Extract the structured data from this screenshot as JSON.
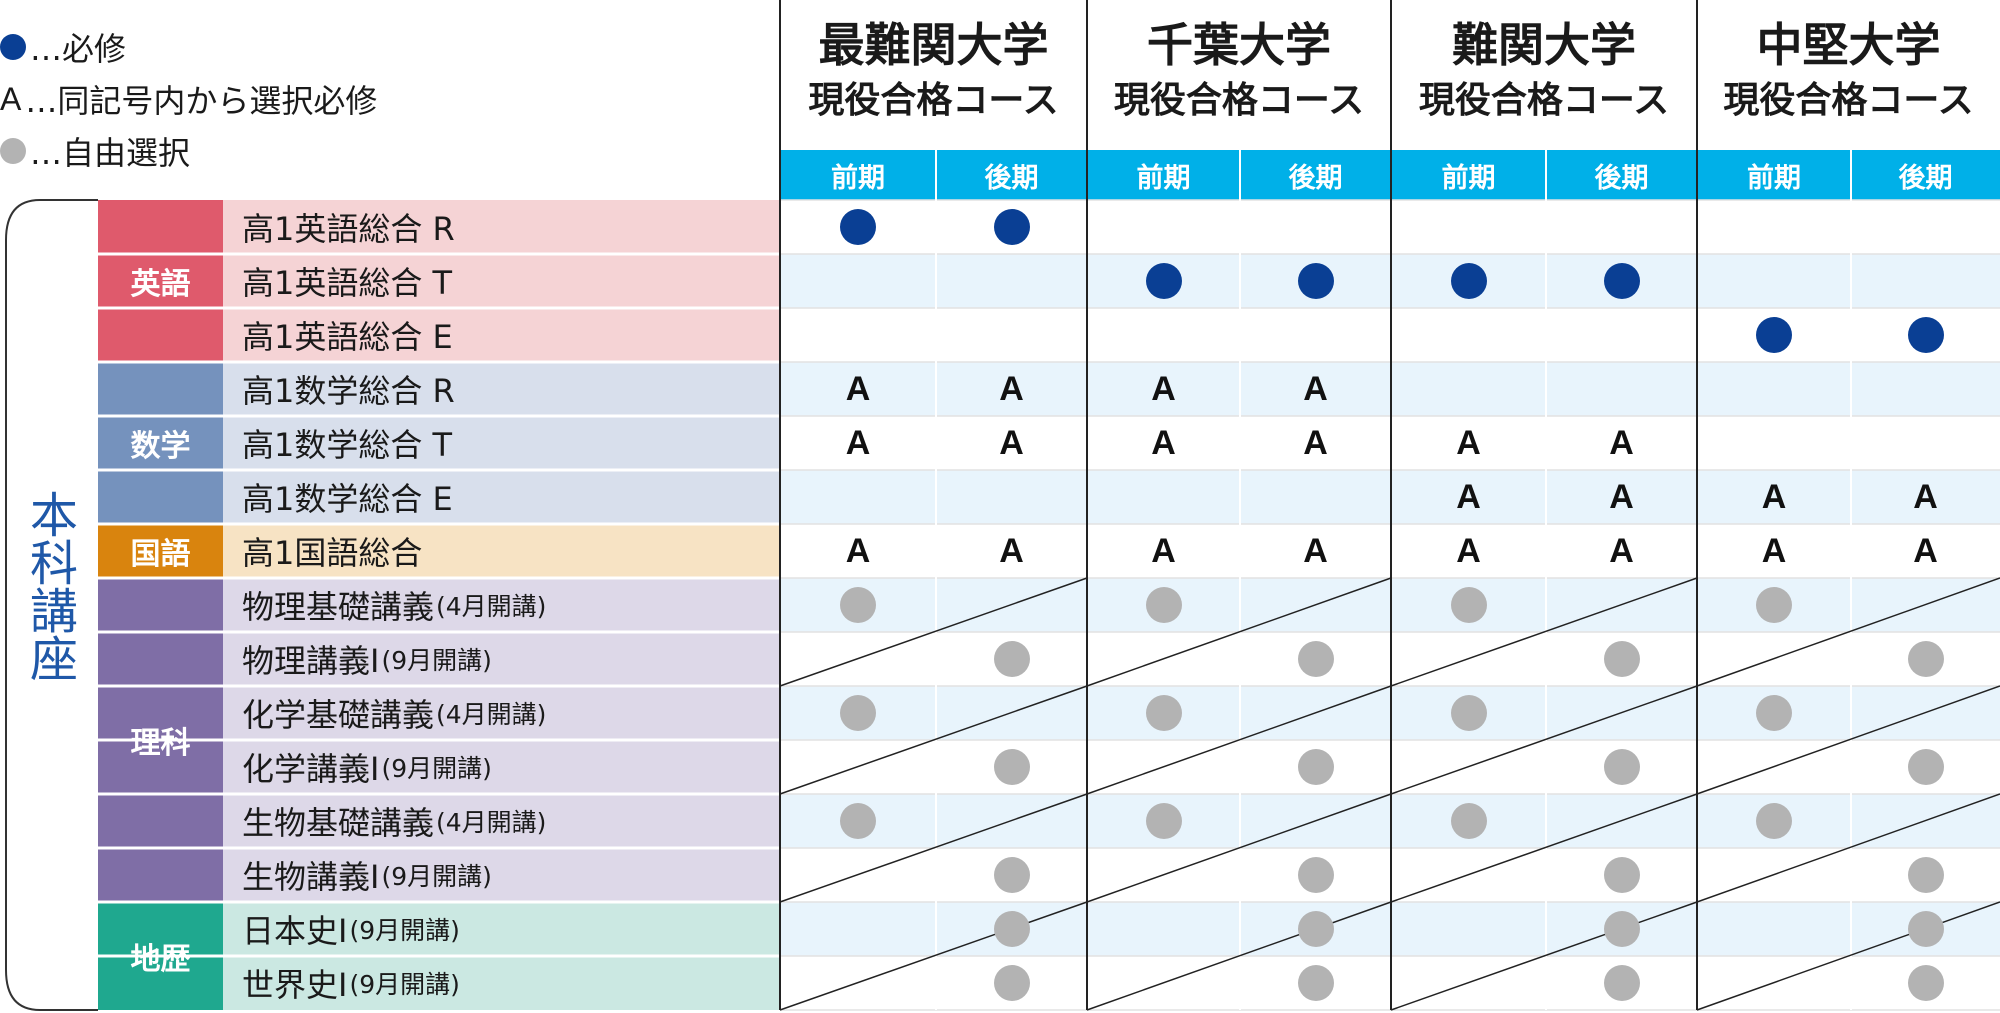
{
  "colors": {
    "required": "#0a3f94",
    "free": "#b3b3b3",
    "term_header": "#00b0e8",
    "stripe": "#e8f4fc",
    "frame_text": "#1f58a8"
  },
  "legend": [
    {
      "icon": "blue-filled-circle",
      "symbol": "",
      "text": "…必修"
    },
    {
      "icon": "letter-a",
      "symbol": "A",
      "text": "…同記号内から選択必修"
    },
    {
      "icon": "gray-filled-circle",
      "symbol": "",
      "text": "…自由選択"
    }
  ],
  "frame_label": "本科講座",
  "courses": [
    {
      "line1": "最難関大学",
      "line2": "現役合格コース",
      "terms": [
        "前期",
        "後期"
      ]
    },
    {
      "line1": "千葉大学",
      "line2": "現役合格コース",
      "terms": [
        "前期",
        "後期"
      ]
    },
    {
      "line1": "難関大学",
      "line2": "現役合格コース",
      "terms": [
        "前期",
        "後期"
      ]
    },
    {
      "line1": "中堅大学",
      "line2": "現役合格コース",
      "terms": [
        "前期",
        "後期"
      ]
    }
  ],
  "subjects": [
    {
      "name": "英語",
      "color": "#df5a6c",
      "bg": "#f5d3d5",
      "start": 0,
      "count": 3
    },
    {
      "name": "数学",
      "color": "#7592bd",
      "bg": "#d8dfec",
      "start": 3,
      "count": 3
    },
    {
      "name": "国語",
      "color": "#d9840e",
      "bg": "#f7e3c4",
      "start": 6,
      "count": 1
    },
    {
      "name": "理科",
      "color": "#7f6ea6",
      "bg": "#ddd8e8",
      "start": 7,
      "count": 6
    },
    {
      "name": "地歴",
      "color": "#1fa88f",
      "bg": "#cbe8e2",
      "start": 13,
      "count": 2
    }
  ],
  "rows": [
    {
      "name": "高1英語総合 R",
      "note": "",
      "marks": [
        "req",
        "req",
        "",
        "",
        "",
        "",
        "",
        ""
      ]
    },
    {
      "name": "高1英語総合 T",
      "note": "",
      "marks": [
        "",
        "",
        "req",
        "req",
        "req",
        "req",
        "",
        ""
      ]
    },
    {
      "name": "高1英語総合 E",
      "note": "",
      "marks": [
        "",
        "",
        "",
        "",
        "",
        "",
        "req",
        "req"
      ]
    },
    {
      "name": "高1数学総合 R",
      "note": "",
      "marks": [
        "A",
        "A",
        "A",
        "A",
        "",
        "",
        "",
        ""
      ]
    },
    {
      "name": "高1数学総合 T",
      "note": "",
      "marks": [
        "A",
        "A",
        "A",
        "A",
        "A",
        "A",
        "",
        ""
      ]
    },
    {
      "name": "高1数学総合 E",
      "note": "",
      "marks": [
        "",
        "",
        "",
        "",
        "A",
        "A",
        "A",
        "A"
      ]
    },
    {
      "name": "高1国語総合",
      "note": "",
      "marks": [
        "A",
        "A",
        "A",
        "A",
        "A",
        "A",
        "A",
        "A"
      ]
    },
    {
      "name": "物理基礎講義",
      "note": "(4月開講)",
      "marks": [
        "free",
        "",
        "free",
        "",
        "free",
        "",
        "free",
        ""
      ]
    },
    {
      "name": "物理講義Ⅰ",
      "note": "(9月開講)",
      "marks": [
        "",
        "free",
        "",
        "free",
        "",
        "free",
        "",
        "free"
      ]
    },
    {
      "name": "化学基礎講義",
      "note": "(4月開講)",
      "marks": [
        "free",
        "",
        "free",
        "",
        "free",
        "",
        "free",
        ""
      ]
    },
    {
      "name": "化学講義Ⅰ",
      "note": "(9月開講)",
      "marks": [
        "",
        "free",
        "",
        "free",
        "",
        "free",
        "",
        "free"
      ]
    },
    {
      "name": "生物基礎講義",
      "note": "(4月開講)",
      "marks": [
        "free",
        "",
        "free",
        "",
        "free",
        "",
        "free",
        ""
      ]
    },
    {
      "name": "生物講義Ⅰ",
      "note": "(9月開講)",
      "marks": [
        "",
        "free",
        "",
        "free",
        "",
        "free",
        "",
        "free"
      ]
    },
    {
      "name": "日本史Ⅰ",
      "note": "(9月開講)",
      "marks": [
        "",
        "free",
        "",
        "free",
        "",
        "free",
        "",
        "free"
      ]
    },
    {
      "name": "世界史Ⅰ",
      "note": "(9月開講)",
      "marks": [
        "",
        "free",
        "",
        "free",
        "",
        "free",
        "",
        "free"
      ]
    }
  ]
}
